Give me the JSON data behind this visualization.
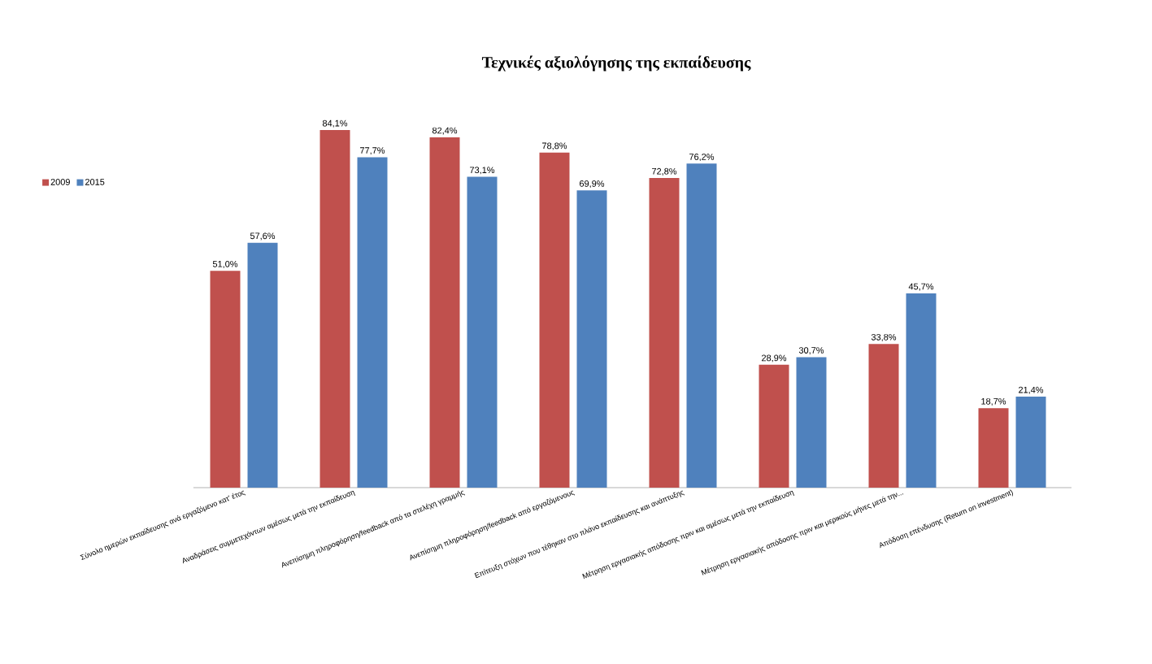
{
  "chart_data": {
    "type": "bar",
    "title": "Τεχνικές αξιολόγησης της εκπαίδευσης",
    "categories": [
      "Σύνολο ημερών εκπαίδευσης ανά εργαζόμενο κατ' έτος",
      "Αναδράσεις συμμετεχόντων αμέσως μετά την εκπαίδευση",
      "Ανεπίσημη πληροφόρηση/feedback από τα στελέχη γραμμής",
      "Ανεπίσημη πληροφόρηση/feedback από εργαζόμενους",
      "Επίτευξη στόχων που τέθηκαν στο πλάνο εκπαίδευσης και ανάπτυξης",
      "Μέτρηση εργασιακής απόδοσης πριν και αμέσως μετά την εκπαίδευση",
      "Μέτρηση εργασιακής απόδοσης πριν και μερικούς μήνες μετά την...",
      "Απόδοση επένδυσης (Return on investment)"
    ],
    "series": [
      {
        "name": "2009",
        "color": "#c0504d",
        "values": [
          51.0,
          84.1,
          82.4,
          78.8,
          72.8,
          28.9,
          33.8,
          18.7
        ],
        "value_labels": [
          "51,0%",
          "84,1%",
          "82,4%",
          "78,8%",
          "72,8%",
          "28,9%",
          "33,8%",
          "18,7%"
        ]
      },
      {
        "name": "2015",
        "color": "#4f81bd",
        "values": [
          57.6,
          77.7,
          73.1,
          69.9,
          76.2,
          30.7,
          45.7,
          21.4
        ],
        "value_labels": [
          "57,6%",
          "77,7%",
          "73,1%",
          "69,9%",
          "76,2%",
          "30,7%",
          "45,7%",
          "21,4%"
        ]
      }
    ],
    "legend": "left",
    "grid": false
  }
}
